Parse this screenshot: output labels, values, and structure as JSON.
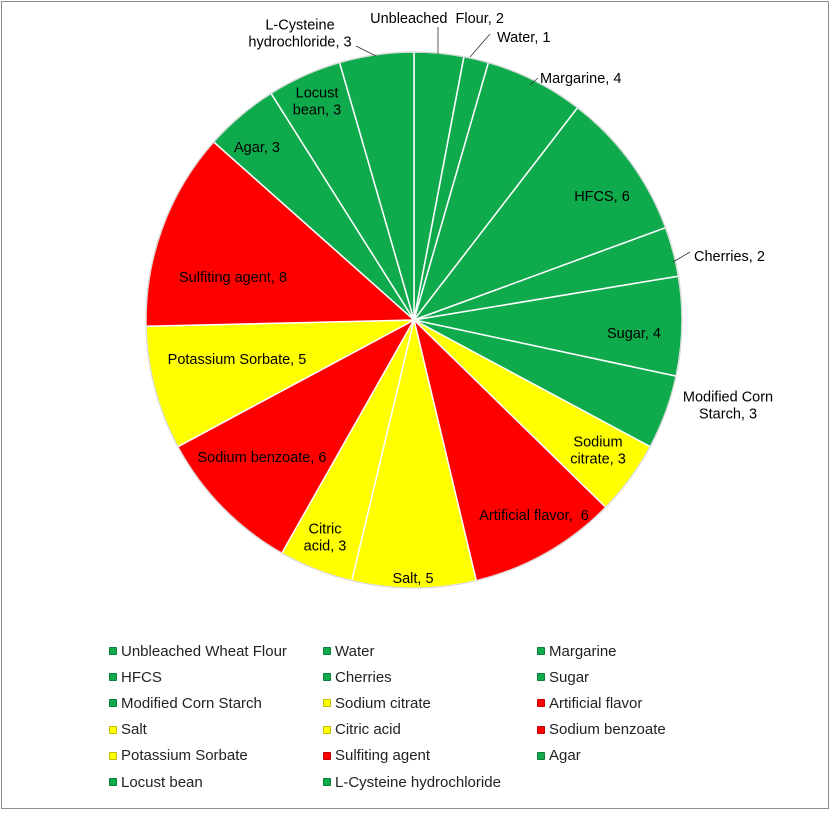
{
  "chart_data": {
    "type": "pie",
    "title": "",
    "colors": {
      "green": "#0eaa4c",
      "yellow": "#ffff00",
      "red": "#ff0000"
    },
    "slices": [
      {
        "name": "Unbleached Wheat Flour",
        "value": 2,
        "color": "green",
        "label": "Unbleached  Flour, 2"
      },
      {
        "name": "Water",
        "value": 1,
        "color": "green",
        "label": "Water, 1"
      },
      {
        "name": "Margarine",
        "value": 4,
        "color": "green",
        "label": "Margarine, 4"
      },
      {
        "name": "HFCS",
        "value": 6,
        "color": "green",
        "label": "HFCS, 6"
      },
      {
        "name": "Cherries",
        "value": 2,
        "color": "green",
        "label": "Cherries, 2"
      },
      {
        "name": "Sugar",
        "value": 4,
        "color": "green",
        "label": "Sugar, 4"
      },
      {
        "name": "Modified Corn Starch",
        "value": 3,
        "color": "green",
        "label": "Modified Corn\nStarch, 3"
      },
      {
        "name": "Sodium citrate",
        "value": 3,
        "color": "yellow",
        "label": "Sodium\ncitrate, 3"
      },
      {
        "name": "Artificial flavor",
        "value": 6,
        "color": "red",
        "label": "Artificial flavor,  6"
      },
      {
        "name": "Salt",
        "value": 5,
        "color": "yellow",
        "label": "Salt, 5"
      },
      {
        "name": "Citric acid",
        "value": 3,
        "color": "yellow",
        "label": "Citric\nacid, 3"
      },
      {
        "name": "Sodium benzoate",
        "value": 6,
        "color": "red",
        "label": "Sodium benzoate, 6"
      },
      {
        "name": "Potassium Sorbate",
        "value": 5,
        "color": "yellow",
        "label": "Potassium Sorbate, 5"
      },
      {
        "name": "Sulfiting agent",
        "value": 8,
        "color": "red",
        "label": "Sulfiting agent, 8"
      },
      {
        "name": "Agar",
        "value": 3,
        "color": "green",
        "label": "Agar, 3"
      },
      {
        "name": "Locust bean",
        "value": 3,
        "color": "green",
        "label": "Locust\nbean, 3"
      },
      {
        "name": "L-Cysteine hydrochloride",
        "value": 3,
        "color": "green",
        "label": "L-Cysteine\nhydrochloride, 3"
      }
    ],
    "legend_position": "bottom"
  }
}
